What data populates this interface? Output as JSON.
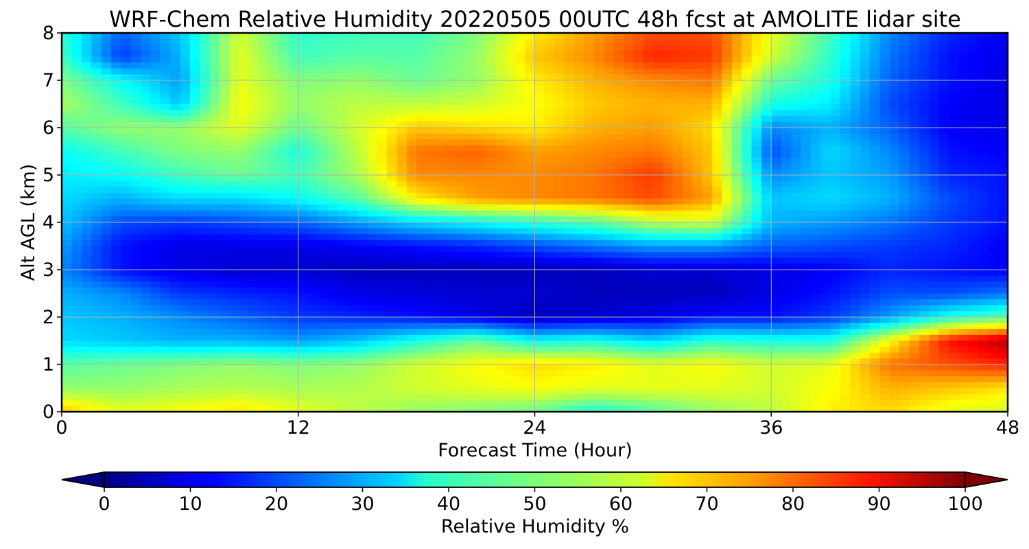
{
  "chart_data": {
    "type": "heatmap",
    "title": "WRF-Chem Relative Humidity 20220505 00UTC 48h fcst at AMOLITE lidar site",
    "xlabel": "Forecast Time (Hour)",
    "ylabel": "Alt AGL (km)",
    "xlim": [
      0,
      48
    ],
    "ylim": [
      0,
      8
    ],
    "x_ticks": [
      "0",
      "12",
      "24",
      "36",
      "48"
    ],
    "y_ticks": [
      "0",
      "1",
      "2",
      "3",
      "4",
      "5",
      "6",
      "7",
      "8"
    ],
    "grid": true,
    "colormap": "jet",
    "colorbar": {
      "label": "Relative Humidity %",
      "range": [
        0,
        100
      ],
      "ticks": [
        "0",
        "10",
        "20",
        "30",
        "40",
        "50",
        "60",
        "70",
        "80",
        "90",
        "100"
      ],
      "extend": "both",
      "orientation": "horizontal"
    },
    "x_hours": [
      0,
      3,
      6,
      9,
      12,
      15,
      18,
      21,
      24,
      27,
      30,
      33,
      36,
      39,
      42,
      45,
      48
    ],
    "z_km": [
      0,
      0.5,
      1,
      1.5,
      2,
      2.5,
      3,
      3.5,
      4,
      4.5,
      5,
      5.5,
      6,
      6.5,
      7,
      7.5,
      8
    ],
    "rh_percent": [
      [
        68,
        60,
        62,
        65,
        60,
        56,
        52,
        50,
        48,
        40,
        46,
        52,
        56,
        64,
        66,
        60,
        58
      ],
      [
        52,
        52,
        54,
        55,
        54,
        55,
        58,
        60,
        62,
        60,
        60,
        60,
        58,
        62,
        70,
        68,
        65
      ],
      [
        46,
        48,
        50,
        52,
        50,
        52,
        58,
        62,
        66,
        64,
        60,
        62,
        58,
        60,
        76,
        80,
        84
      ],
      [
        34,
        32,
        30,
        30,
        28,
        32,
        40,
        48,
        38,
        40,
        34,
        42,
        40,
        40,
        62,
        86,
        95
      ],
      [
        32,
        30,
        26,
        22,
        18,
        16,
        14,
        10,
        6,
        8,
        10,
        14,
        14,
        18,
        28,
        40,
        46
      ],
      [
        30,
        26,
        18,
        16,
        14,
        10,
        9,
        8,
        8,
        6,
        6,
        6,
        10,
        14,
        20,
        20,
        24
      ],
      [
        26,
        14,
        10,
        8,
        8,
        6,
        6,
        6,
        6,
        6,
        8,
        8,
        10,
        12,
        16,
        14,
        12
      ],
      [
        28,
        14,
        10,
        10,
        10,
        12,
        14,
        16,
        20,
        24,
        28,
        28,
        22,
        20,
        18,
        16,
        12
      ],
      [
        32,
        20,
        18,
        20,
        22,
        28,
        34,
        38,
        42,
        46,
        56,
        58,
        30,
        28,
        24,
        18,
        14
      ],
      [
        34,
        30,
        34,
        34,
        38,
        46,
        64,
        72,
        74,
        76,
        80,
        72,
        32,
        34,
        30,
        20,
        14
      ],
      [
        36,
        38,
        44,
        48,
        44,
        54,
        74,
        74,
        74,
        76,
        82,
        68,
        26,
        32,
        28,
        16,
        14
      ],
      [
        38,
        44,
        50,
        52,
        40,
        56,
        76,
        78,
        72,
        74,
        76,
        68,
        20,
        34,
        26,
        14,
        12
      ],
      [
        46,
        52,
        52,
        60,
        48,
        58,
        68,
        66,
        64,
        70,
        72,
        66,
        26,
        30,
        22,
        12,
        10
      ],
      [
        54,
        44,
        32,
        62,
        52,
        56,
        56,
        58,
        62,
        68,
        70,
        70,
        40,
        36,
        20,
        12,
        10
      ],
      [
        50,
        38,
        28,
        60,
        50,
        52,
        48,
        52,
        64,
        70,
        74,
        76,
        48,
        40,
        22,
        14,
        10
      ],
      [
        44,
        18,
        30,
        60,
        44,
        46,
        46,
        52,
        68,
        74,
        84,
        82,
        58,
        42,
        24,
        14,
        10
      ],
      [
        42,
        22,
        32,
        58,
        42,
        44,
        44,
        50,
        64,
        72,
        80,
        80,
        60,
        44,
        26,
        16,
        12
      ]
    ]
  }
}
